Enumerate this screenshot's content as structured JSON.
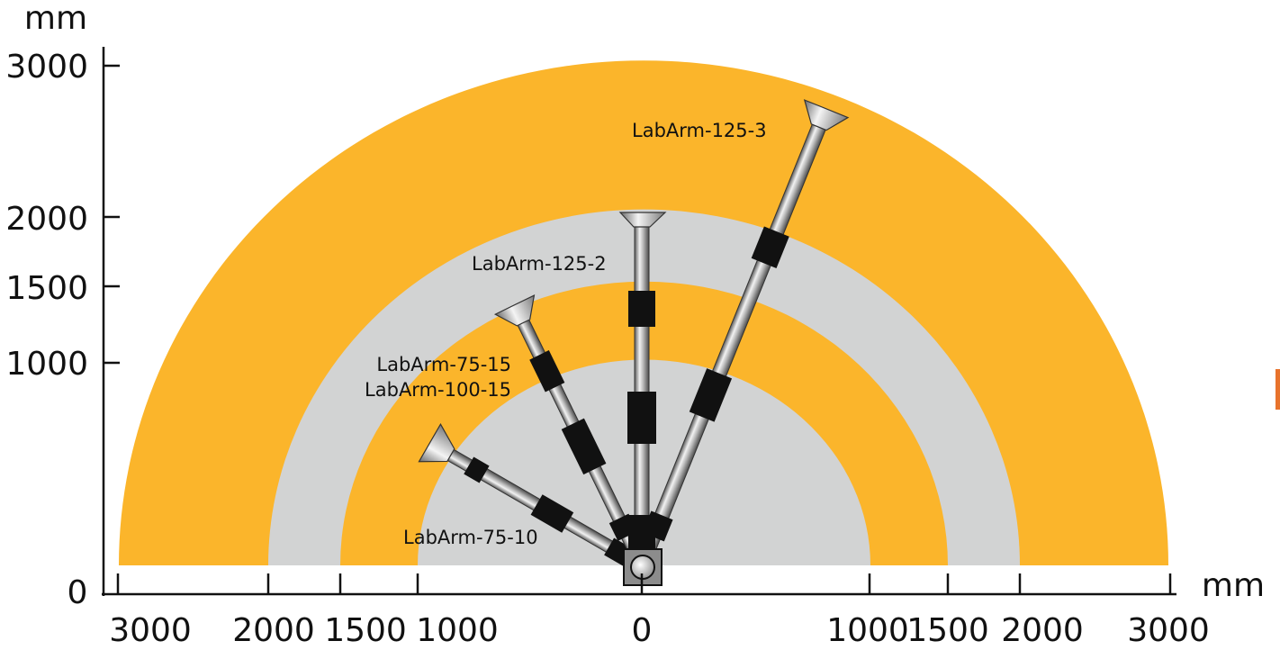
{
  "colors": {
    "outer_band": "#FBB52B",
    "mid_band": "#D2D3D3",
    "inner_band": "#FBB52B",
    "core": "#D2D3D3",
    "axis": "#111111",
    "joint": "#111111",
    "accent_mark": "#E8732C"
  },
  "axes": {
    "y_unit": "mm",
    "x_unit": "mm",
    "y_origin_label": "0",
    "y_ticks": [
      "3000",
      "2000",
      "1500",
      "1000"
    ],
    "x_ticks": [
      "3000",
      "2000",
      "1500",
      "1000",
      "0",
      "1000",
      "1500",
      "2000",
      "3000"
    ]
  },
  "reach_zones": [
    {
      "radius_mm": 3000
    },
    {
      "radius_mm": 2000
    },
    {
      "radius_mm": 1500
    },
    {
      "radius_mm": 1000
    }
  ],
  "arms": [
    {
      "label": "LabArm-125-3",
      "reach_mm": 3000,
      "angle_deg": 68
    },
    {
      "label": "LabArm-125-2",
      "reach_mm": 2000,
      "angle_deg": 90
    },
    {
      "label": "LabArm-75-15",
      "label_2": "LabArm-100-15",
      "reach_mm": 1500,
      "angle_deg": 116
    },
    {
      "label": "LabArm-75-10",
      "reach_mm": 1000,
      "angle_deg": 150
    }
  ]
}
